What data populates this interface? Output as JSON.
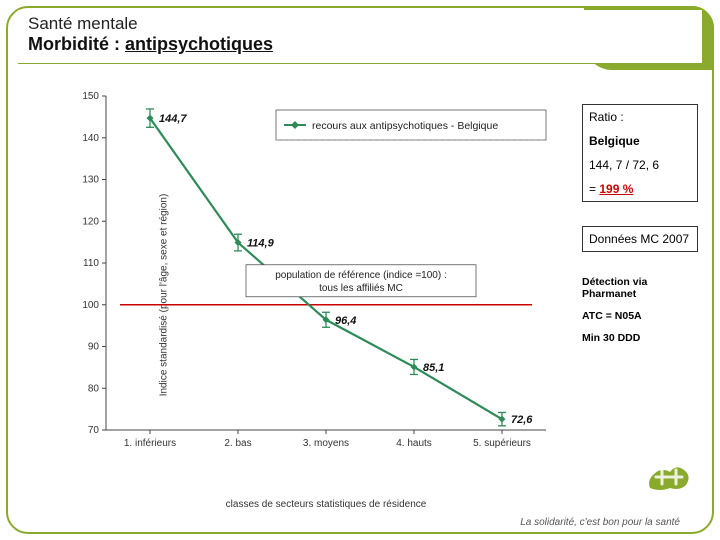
{
  "header": {
    "title_line1": "Santé mentale",
    "title_line2_bold": "Morbidité : ",
    "title_line2_underlined": "antipsychotiques"
  },
  "chart": {
    "type": "line",
    "y_label": "Indice standardisé (pour l'âge, sexe et région)",
    "x_label": "classes de secteurs statistiques de résidence",
    "x_categories": [
      "1. inférieurs",
      "2. bas",
      "3. moyens",
      "4. hauts",
      "5. supérieurs"
    ],
    "y_ticks": [
      70,
      80,
      90,
      100,
      110,
      120,
      130,
      140,
      150
    ],
    "ylim": [
      70,
      150
    ],
    "series": {
      "label": "recours aux antipsychotiques - Belgique",
      "color": "#2e8b57",
      "line_width": 2.2,
      "marker": "diamond",
      "marker_size": 7,
      "values": [
        144.7,
        114.9,
        96.4,
        85.1,
        72.6
      ],
      "ci_half": [
        2.2,
        2.0,
        1.8,
        1.8,
        1.6
      ],
      "point_labels": [
        "144,7",
        "114,9",
        "96,4",
        "85,1",
        "72,6"
      ]
    },
    "legend": {
      "border_color": "#555555",
      "bg": "#ffffff",
      "dash_sep_color": "#888888"
    },
    "ref_box": {
      "text_line1": "population de référence (indice =100) :",
      "text_line2": "tous les affiliés MC",
      "border_color": "#555555"
    },
    "ref_line": {
      "y": 100,
      "color": "#cc0000",
      "width": 1.4
    },
    "axis_color": "#444444",
    "tick_font_size": 10,
    "label_font_size": 10,
    "point_label_font_size": 11,
    "point_label_weight": "bold"
  },
  "sidebar": {
    "ratio_label": "Ratio :",
    "country": "Belgique",
    "ratio_expr": "144, 7 / 72, 6",
    "result_prefix": "= ",
    "result_value": "199 %",
    "data_box": "Données MC 2007",
    "detect": "Détection via Pharmanet",
    "atc": "ATC = N05A",
    "ddd": "Min 30 DDD"
  },
  "footer": {
    "slogan": "La solidarité, c'est bon pour la santé"
  },
  "colors": {
    "olive": "#8aaa2e",
    "olive_dark": "#6c8824",
    "red": "#cc0000"
  }
}
